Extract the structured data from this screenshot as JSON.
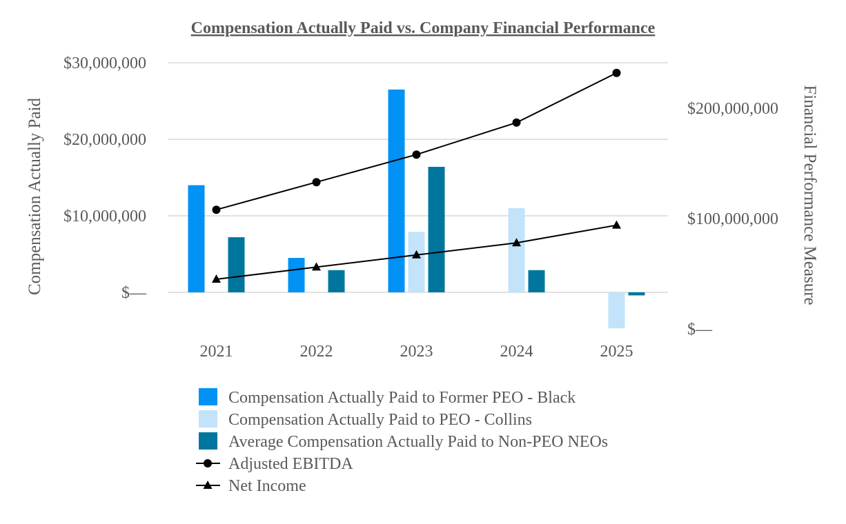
{
  "chart_data": {
    "type": "bar",
    "title": "Compensation Actually Paid vs. Company Financial Performance",
    "categories": [
      "2021",
      "2022",
      "2023",
      "2024",
      "2025"
    ],
    "ylabel": "Compensation Actually Paid",
    "y2label": "Financial Performance Measure",
    "ylim": [
      -6000000,
      30000000
    ],
    "y2lim": [
      0,
      250000000
    ],
    "yticks": [
      {
        "value": 30000000,
        "label": "$30,000,000"
      },
      {
        "value": 20000000,
        "label": "$20,000,000"
      },
      {
        "value": 10000000,
        "label": "$10,000,000"
      },
      {
        "value": 0,
        "label": "$—"
      }
    ],
    "y2ticks": [
      {
        "value": 200000000,
        "label": "$200,000,000"
      },
      {
        "value": 100000000,
        "label": "$100,000,000"
      },
      {
        "value": 0,
        "label": "$—"
      }
    ],
    "grid": true,
    "legend_position": "bottom",
    "bar_series": [
      {
        "name": "Compensation Actually Paid to Former PEO - Black",
        "color": "#0092f5",
        "values": [
          14000000,
          4500000,
          26500000,
          null,
          null
        ]
      },
      {
        "name": "Compensation Actually Paid to PEO - Collins",
        "color": "#c2e3fa",
        "values": [
          null,
          null,
          7900000,
          11000000,
          -4700000
        ]
      },
      {
        "name": "Average Compensation Actually Paid to Non-PEO NEOs",
        "color": "#00769e",
        "values": [
          7200000,
          2900000,
          16400000,
          2900000,
          -400000
        ]
      }
    ],
    "line_series": [
      {
        "name": "Adjusted EBITDA",
        "color": "#000000",
        "marker": "circle",
        "values": [
          108000000,
          133000000,
          158000000,
          187000000,
          232000000
        ]
      },
      {
        "name": "Net Income",
        "color": "#000000",
        "marker": "triangle",
        "values": [
          45000000,
          56000000,
          67000000,
          78000000,
          94000000
        ]
      }
    ]
  }
}
